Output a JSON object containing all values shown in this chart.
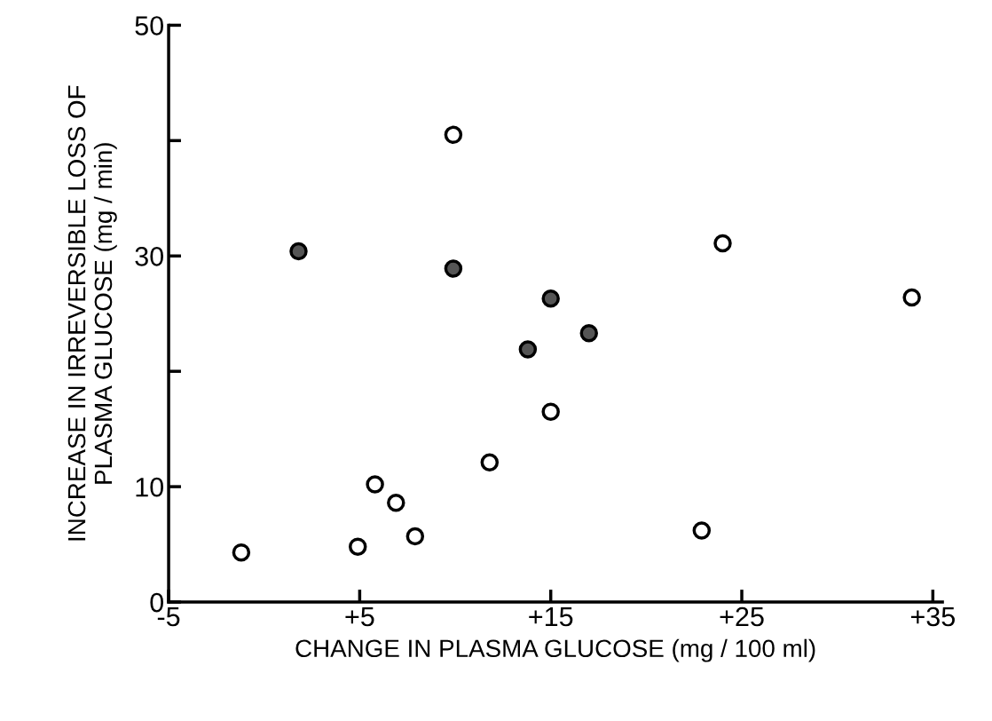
{
  "chart_data": {
    "type": "scatter",
    "xlabel": "CHANGE IN PLASMA GLUCOSE (mg / 100 ml)",
    "ylabel": "INCREASE IN IRREVERSIBLE LOSS OF\nPLASMA GLUCOSE (mg / min)",
    "xlim": [
      -5,
      35.5
    ],
    "ylim": [
      0,
      50
    ],
    "xticks": [
      {
        "value": -5,
        "label": "-5"
      },
      {
        "value": 5,
        "label": "+5"
      },
      {
        "value": 15,
        "label": "+15"
      },
      {
        "value": 25,
        "label": "+25"
      },
      {
        "value": 35,
        "label": "+35"
      }
    ],
    "yticks": [
      0,
      10,
      {
        "value": 20,
        "label": null
      },
      30,
      {
        "value": 40,
        "label": null
      },
      50
    ],
    "marker": "circle",
    "grid": false,
    "legend": false,
    "series": [
      {
        "color": "#ffffff",
        "x": [
          -1.2,
          4.9,
          5.8,
          6.9,
          7.9,
          9.9,
          11.8,
          15.0,
          22.9,
          24.0,
          33.9
        ],
        "values": [
          4.3,
          4.8,
          10.2,
          8.6,
          5.7,
          40.5,
          12.1,
          16.5,
          6.2,
          31.1,
          26.4
        ]
      },
      {
        "color": "#555555",
        "x": [
          1.8,
          9.9,
          15.0,
          13.8,
          17.0
        ],
        "values": [
          30.4,
          28.9,
          26.3,
          21.9,
          23.3
        ]
      }
    ]
  }
}
